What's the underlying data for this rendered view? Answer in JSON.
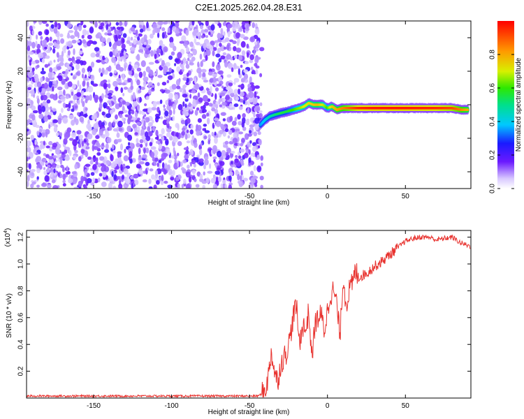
{
  "title": "C2E1.2025.262.04.28.E31",
  "chart_data": [
    {
      "type": "heatmap",
      "xlabel": "Height of straight line (km)",
      "ylabel": "Frequency (Hz)",
      "xlim": [
        -193,
        92
      ],
      "ylim": [
        -50,
        50
      ],
      "xticks": [
        -150,
        -100,
        -50,
        0,
        50
      ],
      "yticks": [
        -40,
        -20,
        0,
        20,
        40
      ],
      "colorbar": {
        "label": "Normalized spectral amplitude",
        "range": [
          0,
          1
        ],
        "ticks": [
          "0.0",
          "0.2",
          "0.4",
          "0.6",
          "0.8"
        ]
      },
      "noise_region_x": [
        -193,
        -42
      ],
      "ridge": {
        "x": [
          -43,
          -40,
          -37,
          -34,
          -30,
          -26,
          -22,
          -18,
          -15,
          -12,
          -9,
          -6,
          -3,
          0,
          3,
          6,
          10,
          15,
          20,
          30,
          40,
          50,
          60,
          70,
          80,
          86,
          90
        ],
        "freq": [
          -12,
          -9,
          -7,
          -6,
          -5,
          -4,
          -3,
          -2,
          -1,
          1,
          0,
          0,
          0,
          -2,
          -1,
          -3,
          -2,
          -2,
          -2,
          -2,
          -2,
          -2,
          -2,
          -2,
          -2,
          -3,
          -3
        ],
        "amp": [
          0.35,
          0.4,
          0.45,
          0.5,
          0.55,
          0.55,
          0.6,
          0.65,
          0.7,
          0.72,
          0.75,
          0.78,
          0.7,
          0.6,
          0.75,
          0.8,
          0.85,
          0.9,
          0.95,
          0.97,
          0.97,
          0.97,
          0.96,
          0.95,
          0.92,
          0.85,
          0.8
        ]
      }
    },
    {
      "type": "line",
      "xlabel": "Height of straight line (km)",
      "ylabel": "SNR (10 * v/v)",
      "yscale_label": "(x10",
      "yscale_exp": "4",
      "yscale_close": ")",
      "xlim": [
        -193,
        92
      ],
      "ylim": [
        0,
        1.25
      ],
      "xticks": [
        -150,
        -100,
        -50,
        0,
        50
      ],
      "yticks": [
        0.2,
        0.4,
        0.6,
        0.8,
        1.0,
        1.2
      ],
      "yticklabels": [
        "0.2",
        "0.4",
        "0.6",
        "0.8",
        "1.0",
        "1.2"
      ],
      "color": "#e8322e",
      "series": [
        {
          "name": "SNR",
          "x": [
            -193,
            -150,
            -100,
            -60,
            -45,
            -42,
            -40,
            -38,
            -36,
            -34,
            -32,
            -30,
            -28,
            -26,
            -24,
            -22,
            -20,
            -18,
            -16,
            -14,
            -12,
            -10,
            -8,
            -6,
            -4,
            -2,
            0,
            2,
            4,
            6,
            8,
            10,
            12,
            14,
            16,
            18,
            20,
            25,
            30,
            35,
            40,
            45,
            50,
            55,
            60,
            65,
            70,
            75,
            80,
            85,
            92
          ],
          "values": [
            0.015,
            0.015,
            0.015,
            0.015,
            0.015,
            0.03,
            0.06,
            0.15,
            0.35,
            0.2,
            0.12,
            0.25,
            0.3,
            0.35,
            0.45,
            0.6,
            0.7,
            0.4,
            0.55,
            0.5,
            0.65,
            0.3,
            0.55,
            0.6,
            0.62,
            0.5,
            0.65,
            0.78,
            0.8,
            0.7,
            0.45,
            0.9,
            0.7,
            0.8,
            0.85,
            0.95,
            0.9,
            0.93,
            0.98,
            1.02,
            1.07,
            1.12,
            1.17,
            1.19,
            1.2,
            1.2,
            1.18,
            1.19,
            1.2,
            1.16,
            1.13
          ]
        }
      ]
    }
  ]
}
